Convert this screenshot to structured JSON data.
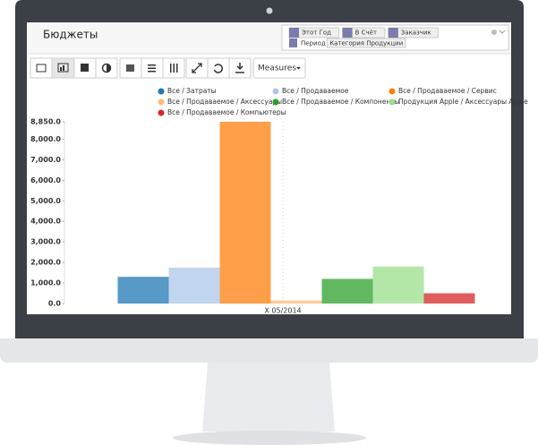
{
  "header": {
    "title": "Бюджеты"
  },
  "search": {
    "facets": [
      "Этот Год",
      "В Счёт",
      "Заказчик"
    ],
    "group_by": {
      "label": "Период",
      "value": "Категория Продукции"
    }
  },
  "toolbar": {
    "measures": "Measures"
  },
  "chart_data": {
    "type": "bar",
    "categories": [
      "X 05/2014"
    ],
    "series": [
      {
        "name": "Все / Затраты",
        "color": "#1f77b4",
        "values": [
          1300
        ]
      },
      {
        "name": "Все / Продаваемое",
        "color": "#aec7e8",
        "values": [
          1750
        ]
      },
      {
        "name": "Все / Продаваемое / Сервис",
        "color": "#ff7f0e",
        "values": [
          8850
        ]
      },
      {
        "name": "Все / Продаваемое / Аксессуары",
        "color": "#ffbb78",
        "values": [
          150
        ]
      },
      {
        "name": "Все / Продаваемое / Компоненты",
        "color": "#2ca02c",
        "values": [
          1200
        ]
      },
      {
        "name": "Продукция Apple / Аксессуары Apple",
        "color": "#98df8a",
        "values": [
          1800
        ]
      },
      {
        "name": "Все / Продаваемое / Компьютеры",
        "color": "#d62728",
        "values": [
          500
        ]
      }
    ],
    "ylim": [
      0,
      8850
    ],
    "yticks": [
      {
        "value": 0,
        "label": "0.0"
      },
      {
        "value": 1000,
        "label": "1,000.0"
      },
      {
        "value": 2000,
        "label": "2,000.0"
      },
      {
        "value": 3000,
        "label": "3,000.0"
      },
      {
        "value": 4000,
        "label": "4,000.0"
      },
      {
        "value": 5000,
        "label": "5,000.0"
      },
      {
        "value": 6000,
        "label": "6,000.0"
      },
      {
        "value": 7000,
        "label": "7,000.0"
      },
      {
        "value": 8000,
        "label": "8,000.0"
      },
      {
        "value": 8850,
        "label": "8,850.0"
      }
    ]
  }
}
